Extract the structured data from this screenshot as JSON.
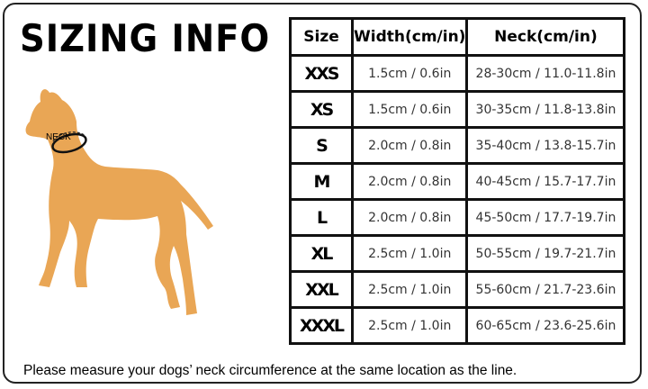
{
  "title": "SIZING INFO",
  "dog_label": "NECK",
  "dog_color": "#E9A655",
  "table": {
    "headers": [
      "Size",
      "Width(cm/in)",
      "Neck(cm/in)"
    ],
    "rows": [
      {
        "size": "XXS",
        "width": "1.5cm / 0.6in",
        "neck": "28-30cm / 11.0-11.8in"
      },
      {
        "size": "XS",
        "width": "1.5cm / 0.6in",
        "neck": "30-35cm / 11.8-13.8in"
      },
      {
        "size": "S",
        "width": "2.0cm / 0.8in",
        "neck": "35-40cm / 13.8-15.7in"
      },
      {
        "size": "M",
        "width": "2.0cm / 0.8in",
        "neck": "40-45cm / 15.7-17.7in"
      },
      {
        "size": "L",
        "width": "2.0cm / 0.8in",
        "neck": "45-50cm / 17.7-19.7in"
      },
      {
        "size": "XL",
        "width": "2.5cm / 1.0in",
        "neck": "50-55cm / 19.7-21.7in"
      },
      {
        "size": "XXL",
        "width": "2.5cm / 1.0in",
        "neck": "55-60cm / 21.7-23.6in"
      },
      {
        "size": "XXXL",
        "width": "2.5cm / 1.0in",
        "neck": "60-65cm / 23.6-25.6in"
      }
    ]
  },
  "note": "Please measure your dogs’  neck circumference at the same location as the line."
}
